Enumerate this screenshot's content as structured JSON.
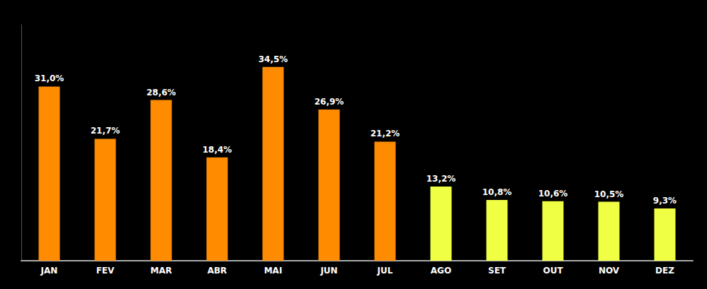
{
  "chart_data": {
    "type": "bar",
    "categories": [
      "JAN",
      "FEV",
      "MAR",
      "ABR",
      "MAI",
      "JUN",
      "JUL",
      "AGO",
      "SET",
      "OUT",
      "NOV",
      "DEZ"
    ],
    "values": [
      31.0,
      21.7,
      28.6,
      18.4,
      34.5,
      26.9,
      21.2,
      13.2,
      10.8,
      10.6,
      10.5,
      9.3
    ],
    "value_labels": [
      "31,0%",
      "21,7%",
      "28,6%",
      "18,4%",
      "34,5%",
      "26,9%",
      "21,2%",
      "13,2%",
      "10,8%",
      "10,6%",
      "10,5%",
      "9,3%"
    ],
    "colors": [
      "#FF8C00",
      "#FF8C00",
      "#FF8C00",
      "#FF8C00",
      "#FF8C00",
      "#FF8C00",
      "#FF8C00",
      "#EEFF44",
      "#EEFF44",
      "#EEFF44",
      "#EEFF44",
      "#EEFF44"
    ],
    "ylim": [
      0,
      42
    ],
    "data_labels": true,
    "tick_labels": "x",
    "grid": false
  }
}
